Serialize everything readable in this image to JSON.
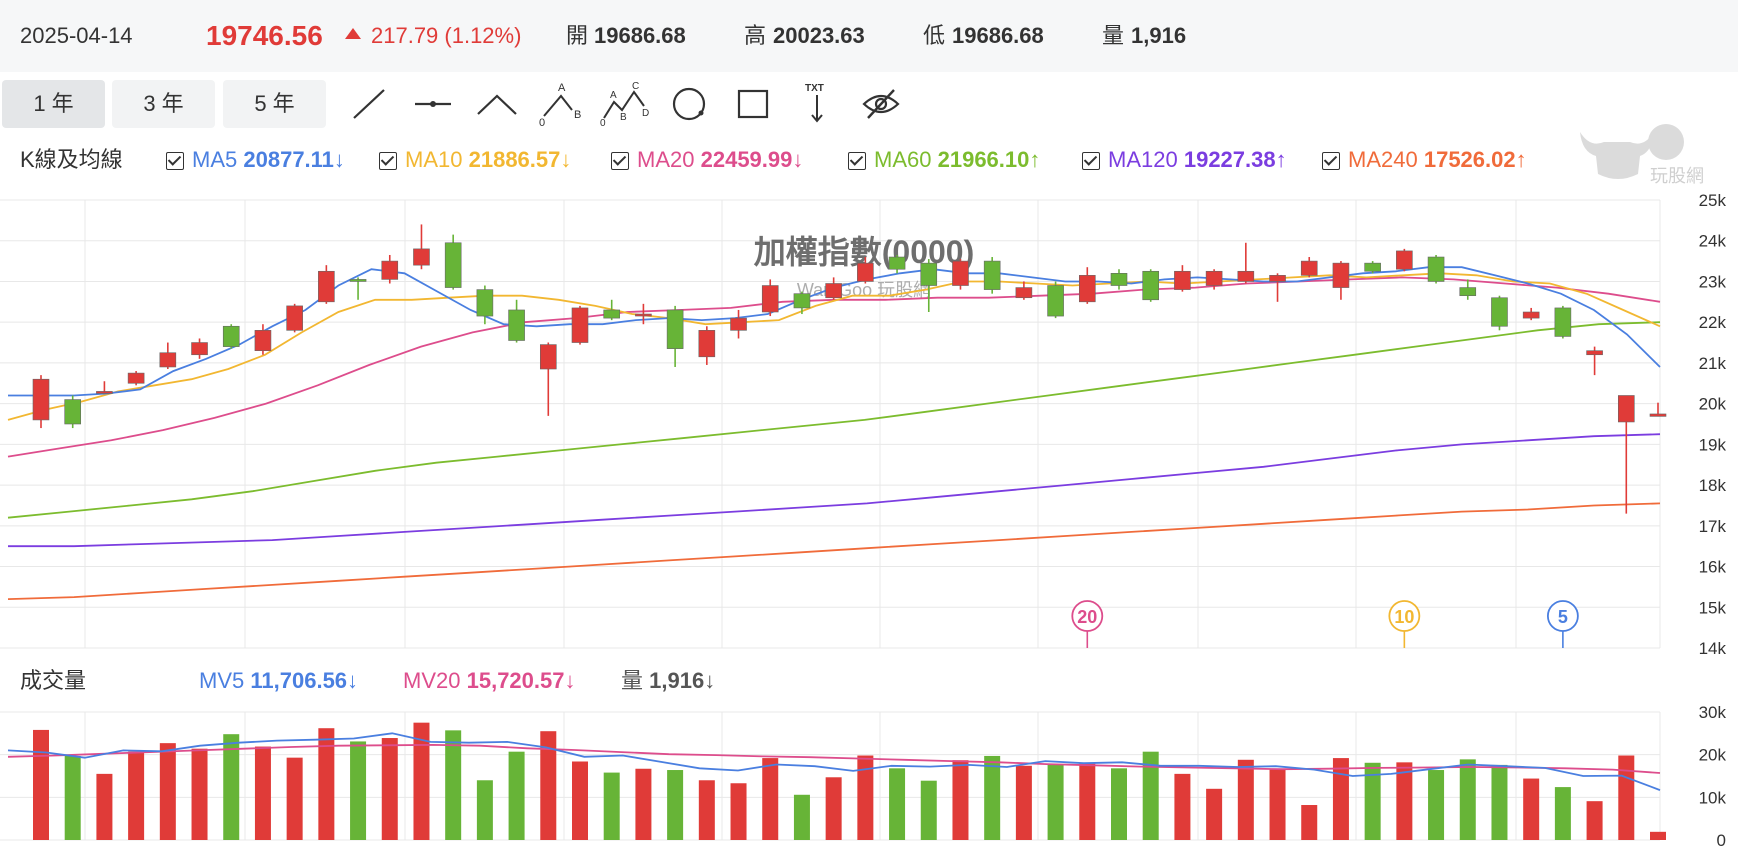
{
  "quote": {
    "date": "2025-04-14",
    "price": "19746.56",
    "change": "217.79 (1.12%)",
    "open_label": "開",
    "open": "19686.68",
    "high_label": "高",
    "high": "20023.63",
    "low_label": "低",
    "low": "19686.68",
    "volume_label": "量",
    "volume": "1,916"
  },
  "ranges": [
    "1 年",
    "3 年",
    "5 年"
  ],
  "tools": [
    "line-tool",
    "horizontal-line-tool",
    "angle-tool",
    "abc-pattern-tool",
    "wave-pattern-tool",
    "circle-tool",
    "rectangle-tool",
    "text-tool",
    "hide-drawings-tool"
  ],
  "tool_text": {
    "txt": "TXT",
    "a": "A",
    "b": "B",
    "c": "C",
    "d": "D",
    "zero": "0"
  },
  "price_legend": {
    "title": "K線及均線",
    "items": [
      {
        "name": "MA5",
        "value": "20877.11",
        "arrow": "↓",
        "color": "#4a7fe0"
      },
      {
        "name": "MA10",
        "value": "21886.57",
        "arrow": "↓",
        "color": "#f2b731"
      },
      {
        "name": "MA20",
        "value": "22459.99",
        "arrow": "↓",
        "color": "#dd4d8c"
      },
      {
        "name": "MA60",
        "value": "21966.10",
        "arrow": "↑",
        "color": "#7cbc2e"
      },
      {
        "name": "MA120",
        "value": "19227.38",
        "arrow": "↑",
        "color": "#7b3de0"
      },
      {
        "name": "MA240",
        "value": "17526.02",
        "arrow": "↑",
        "color": "#f06b3a"
      }
    ]
  },
  "volume_legend": {
    "title": "成交量",
    "items": [
      {
        "name": "MV5",
        "value": "11,706.56",
        "arrow": "↓",
        "color": "#4a7fe0"
      },
      {
        "name": "MV20",
        "value": "15,720.57",
        "arrow": "↓",
        "color": "#dd4d8c"
      },
      {
        "name": "量",
        "value": "1,916",
        "arrow": "↓",
        "color": "#555555"
      }
    ]
  },
  "logo": {
    "text": "玩股網"
  },
  "colors": {
    "up": "#e03b38",
    "down": "#67b437",
    "grid": "#e8e8e8"
  },
  "chart_data": {
    "type": "candlestick",
    "title": "加權指數(0000)",
    "watermark": "WantGoo 玩股網",
    "price_axis": {
      "ticks": [
        "25k",
        "24k",
        "23k",
        "22k",
        "21k",
        "20k",
        "19k",
        "18k",
        "17k",
        "16k",
        "15k",
        "14k"
      ],
      "ylim": [
        14000,
        25000
      ]
    },
    "volume_axis": {
      "ticks": [
        "30k",
        "20k",
        "10k",
        "0"
      ],
      "ylim": [
        0,
        30000
      ]
    },
    "candles": [
      {
        "o": 19600,
        "c": 20600,
        "h": 20700,
        "l": 19400
      },
      {
        "o": 20100,
        "c": 19500,
        "h": 20200,
        "l": 19400
      },
      {
        "o": 20300,
        "c": 20300,
        "h": 20550,
        "l": 20250
      },
      {
        "o": 20500,
        "c": 20750,
        "h": 20800,
        "l": 20450
      },
      {
        "o": 20900,
        "c": 21250,
        "h": 21500,
        "l": 20850
      },
      {
        "o": 21200,
        "c": 21500,
        "h": 21600,
        "l": 21100
      },
      {
        "o": 21900,
        "c": 21400,
        "h": 21950,
        "l": 21350
      },
      {
        "o": 21300,
        "c": 21800,
        "h": 21950,
        "l": 21200
      },
      {
        "o": 21800,
        "c": 22400,
        "h": 22450,
        "l": 21750
      },
      {
        "o": 22500,
        "c": 23250,
        "h": 23400,
        "l": 22450
      },
      {
        "o": 23050,
        "c": 23000,
        "h": 23100,
        "l": 22550
      },
      {
        "o": 23050,
        "c": 23500,
        "h": 23650,
        "l": 22950
      },
      {
        "o": 23400,
        "c": 23800,
        "h": 24400,
        "l": 23300
      },
      {
        "o": 23950,
        "c": 22850,
        "h": 24150,
        "l": 22800
      },
      {
        "o": 22800,
        "c": 22150,
        "h": 22900,
        "l": 21950
      },
      {
        "o": 22300,
        "c": 21550,
        "h": 22550,
        "l": 21500
      },
      {
        "o": 20850,
        "c": 21450,
        "h": 21500,
        "l": 19700
      },
      {
        "o": 21500,
        "c": 22350,
        "h": 22400,
        "l": 21450
      },
      {
        "o": 22300,
        "c": 22100,
        "h": 22550,
        "l": 22050
      },
      {
        "o": 22200,
        "c": 22200,
        "h": 22450,
        "l": 21950
      },
      {
        "o": 22300,
        "c": 21350,
        "h": 22400,
        "l": 20900
      },
      {
        "o": 21150,
        "c": 21800,
        "h": 21900,
        "l": 20950
      },
      {
        "o": 21800,
        "c": 22100,
        "h": 22300,
        "l": 21600
      },
      {
        "o": 22250,
        "c": 22900,
        "h": 23050,
        "l": 22150
      },
      {
        "o": 22700,
        "c": 22350,
        "h": 22750,
        "l": 22200
      },
      {
        "o": 22600,
        "c": 22950,
        "h": 23100,
        "l": 22550
      },
      {
        "o": 23000,
        "c": 23450,
        "h": 23600,
        "l": 22950
      },
      {
        "o": 23600,
        "c": 23300,
        "h": 23650,
        "l": 23200
      },
      {
        "o": 23450,
        "c": 22900,
        "h": 23550,
        "l": 22250
      },
      {
        "o": 22900,
        "c": 23500,
        "h": 23550,
        "l": 22800
      },
      {
        "o": 23500,
        "c": 22800,
        "h": 23600,
        "l": 22700
      },
      {
        "o": 22600,
        "c": 22850,
        "h": 23000,
        "l": 22550
      },
      {
        "o": 22900,
        "c": 22150,
        "h": 23000,
        "l": 22100
      },
      {
        "o": 22500,
        "c": 23150,
        "h": 23350,
        "l": 22450
      },
      {
        "o": 23200,
        "c": 22900,
        "h": 23300,
        "l": 22800
      },
      {
        "o": 23250,
        "c": 22550,
        "h": 23300,
        "l": 22500
      },
      {
        "o": 22800,
        "c": 23250,
        "h": 23400,
        "l": 22750
      },
      {
        "o": 22900,
        "c": 23250,
        "h": 23300,
        "l": 22800
      },
      {
        "o": 23000,
        "c": 23250,
        "h": 23950,
        "l": 22950
      },
      {
        "o": 23000,
        "c": 23150,
        "h": 23200,
        "l": 22500
      },
      {
        "o": 23150,
        "c": 23500,
        "h": 23600,
        "l": 23100
      },
      {
        "o": 22850,
        "c": 23450,
        "h": 23500,
        "l": 22550
      },
      {
        "o": 23450,
        "c": 23250,
        "h": 23500,
        "l": 23200
      },
      {
        "o": 23300,
        "c": 23750,
        "h": 23800,
        "l": 23250
      },
      {
        "o": 23600,
        "c": 23000,
        "h": 23650,
        "l": 22950
      },
      {
        "o": 22850,
        "c": 22650,
        "h": 23050,
        "l": 22550
      },
      {
        "o": 22600,
        "c": 21900,
        "h": 22650,
        "l": 21800
      },
      {
        "o": 22100,
        "c": 22250,
        "h": 22350,
        "l": 22050
      },
      {
        "o": 22350,
        "c": 21650,
        "h": 22400,
        "l": 21600
      },
      {
        "o": 21200,
        "c": 21300,
        "h": 21400,
        "l": 20700
      },
      {
        "o": 19550,
        "c": 20200,
        "h": 20200,
        "l": 17300
      },
      {
        "o": 19686.68,
        "c": 19746.56,
        "h": 20023.63,
        "l": 19686.68
      }
    ],
    "ma": {
      "MA5": [
        20200,
        20200,
        20200,
        20250,
        20350,
        20800,
        21100,
        21450,
        21900,
        22300,
        22900,
        23300,
        23200,
        22750,
        22300,
        21950,
        21900,
        21950,
        21950,
        22050,
        22100,
        22050,
        22100,
        22200,
        22550,
        22850,
        23050,
        23200,
        23300,
        23200,
        23200,
        23100,
        23000,
        23000,
        22950,
        23050,
        23100,
        23050,
        23000,
        23000,
        23100,
        23200,
        23250,
        23350,
        23350,
        23150,
        22950,
        22700,
        22300,
        21700,
        20900
      ],
      "MA10": [
        19600,
        19850,
        20050,
        20300,
        20450,
        20600,
        20850,
        21200,
        21750,
        22250,
        22550,
        22550,
        22600,
        22650,
        22650,
        22550,
        22400,
        22200,
        22100,
        21950,
        22000,
        22050,
        22400,
        22650,
        22650,
        22800,
        23000,
        23000,
        22950,
        22900,
        22950,
        23000,
        22950,
        23000,
        23050,
        23100,
        23150,
        23100,
        23150,
        23200,
        23150,
        23000,
        22950,
        22700,
        22300,
        21900
      ],
      "MA20": [
        18700,
        18900,
        19100,
        19350,
        19650,
        20000,
        20450,
        20950,
        21400,
        21750,
        22000,
        22100,
        22250,
        22300,
        22350,
        22500,
        22550,
        22550,
        22600,
        22600,
        22650,
        22700,
        22800,
        22850,
        22950,
        23000,
        23050,
        23100,
        23050,
        22950,
        22850,
        22700,
        22500
      ],
      "MA60": [
        17200,
        17350,
        17500,
        17650,
        17850,
        18100,
        18350,
        18550,
        18700,
        18850,
        19000,
        19150,
        19300,
        19450,
        19600,
        19800,
        20000,
        20200,
        20400,
        20600,
        20800,
        21000,
        21200,
        21400,
        21600,
        21800,
        21950,
        22000
      ],
      "MA120": [
        16500,
        16500,
        16550,
        16600,
        16650,
        16750,
        16850,
        16950,
        17050,
        17150,
        17250,
        17350,
        17450,
        17550,
        17700,
        17850,
        18000,
        18150,
        18300,
        18450,
        18650,
        18850,
        19000,
        19100,
        19200,
        19250
      ],
      "MA240": [
        15200,
        15250,
        15350,
        15450,
        15550,
        15650,
        15750,
        15850,
        15950,
        16050,
        16150,
        16250,
        16350,
        16450,
        16550,
        16650,
        16750,
        16850,
        16950,
        17050,
        17150,
        17250,
        17350,
        17400,
        17500,
        17550
      ]
    },
    "volume": [
      25800,
      19700,
      15500,
      20700,
      22700,
      21400,
      24800,
      21900,
      19300,
      26200,
      23100,
      23900,
      27500,
      25700,
      14000,
      20700,
      25500,
      18400,
      15800,
      16700,
      16400,
      14000,
      13300,
      19200,
      10600,
      14700,
      19800,
      16800,
      13900,
      18700,
      19700,
      17400,
      17700,
      17900,
      16800,
      20700,
      15500,
      12000,
      18800,
      16500,
      8200,
      19200,
      18100,
      18200,
      16400,
      18900,
      17600,
      14400,
      12400,
      9100,
      19800,
      1916
    ],
    "mv5": [
      21000,
      20500,
      19300,
      21000,
      20800,
      22100,
      22800,
      23300,
      23500,
      23800,
      25000,
      23000,
      22800,
      23000,
      21700,
      19500,
      19800,
      18300,
      16800,
      16300,
      17700,
      17300,
      16200,
      17400,
      17200,
      17600,
      17100,
      18500,
      18000,
      18200,
      17400,
      17400,
      17100,
      17300,
      16500,
      15000,
      15500,
      16600,
      17700,
      17300,
      16900,
      15000,
      15100,
      11700
    ],
    "mv20": [
      19500,
      19800,
      20200,
      20600,
      21000,
      21400,
      21800,
      22100,
      22200,
      22300,
      22100,
      21500,
      21100,
      20600,
      20100,
      19900,
      19600,
      19400,
      19100,
      18800,
      18500,
      18200,
      17800,
      17500,
      17200,
      17000,
      16800,
      16600,
      16700,
      16900,
      17000,
      17100,
      17000,
      16800,
      16500,
      15700
    ],
    "markers": [
      {
        "label": "20",
        "color": "#dd4d8c",
        "candle": 33
      },
      {
        "label": "10",
        "color": "#f2b731",
        "candle": 43
      },
      {
        "label": "5",
        "color": "#4a7fe0",
        "candle": 48
      }
    ]
  }
}
